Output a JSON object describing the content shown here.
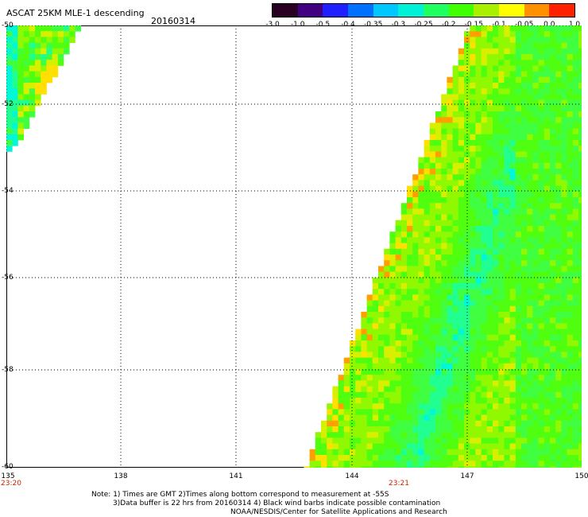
{
  "header": {
    "title": "ASCAT 25KM MLE-1 descending",
    "date": "20160314"
  },
  "colorbar": {
    "colors": [
      "#2a0022",
      "#400080",
      "#2020ff",
      "#0070ff",
      "#00c8ff",
      "#00f0d8",
      "#20ff60",
      "#40ff00",
      "#a8f000",
      "#ffff00",
      "#ff9000",
      "#ff2000"
    ],
    "labels": [
      "-3.0",
      "-1.0",
      "-0.5",
      "-0.4",
      "-0.35",
      "-0.3",
      "-0.25",
      "-0.2",
      "-0.15",
      "-0.1",
      "-0.05",
      "0.0",
      "1.0"
    ]
  },
  "map": {
    "lat_labels": [
      "-50",
      "-52",
      "-54",
      "-56",
      "-58",
      "-60"
    ],
    "lon_labels": [
      "135",
      "138",
      "141",
      "144",
      "147",
      "150"
    ],
    "time_labels": [
      "23:20",
      "23:21"
    ]
  },
  "notes": {
    "line1": "Note: 1) Times are GMT 2)Times along bottom correspond to measurement at -55S",
    "line2": "3)Data buffer is 22 hrs from 20160314 4) Black wind barbs indicate possible contamination",
    "line3": "NOAA/NESDIS/Center for Satellite Applications and Research"
  }
}
